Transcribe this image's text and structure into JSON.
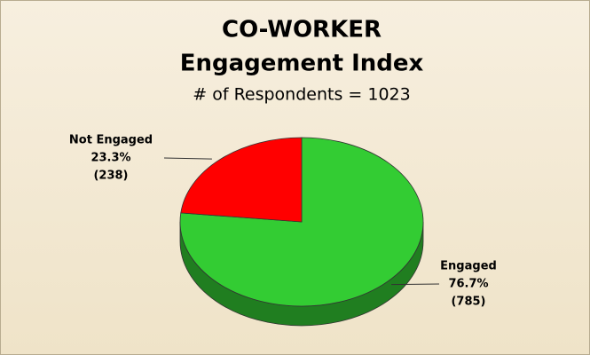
{
  "chart_data": {
    "type": "pie",
    "title": "CO-WORKER",
    "subtitle_title": "Engagement Index",
    "subtitle": "# of Respondents = 1023",
    "categories": [
      "Engaged",
      "Not Engaged"
    ],
    "values": [
      76.7,
      23.3
    ],
    "value_labels": [
      "76.7%",
      "23.3%"
    ],
    "count_labels": [
      "(785)",
      "(238)"
    ],
    "colors": [
      "#33cc33",
      "#ff0000"
    ]
  }
}
